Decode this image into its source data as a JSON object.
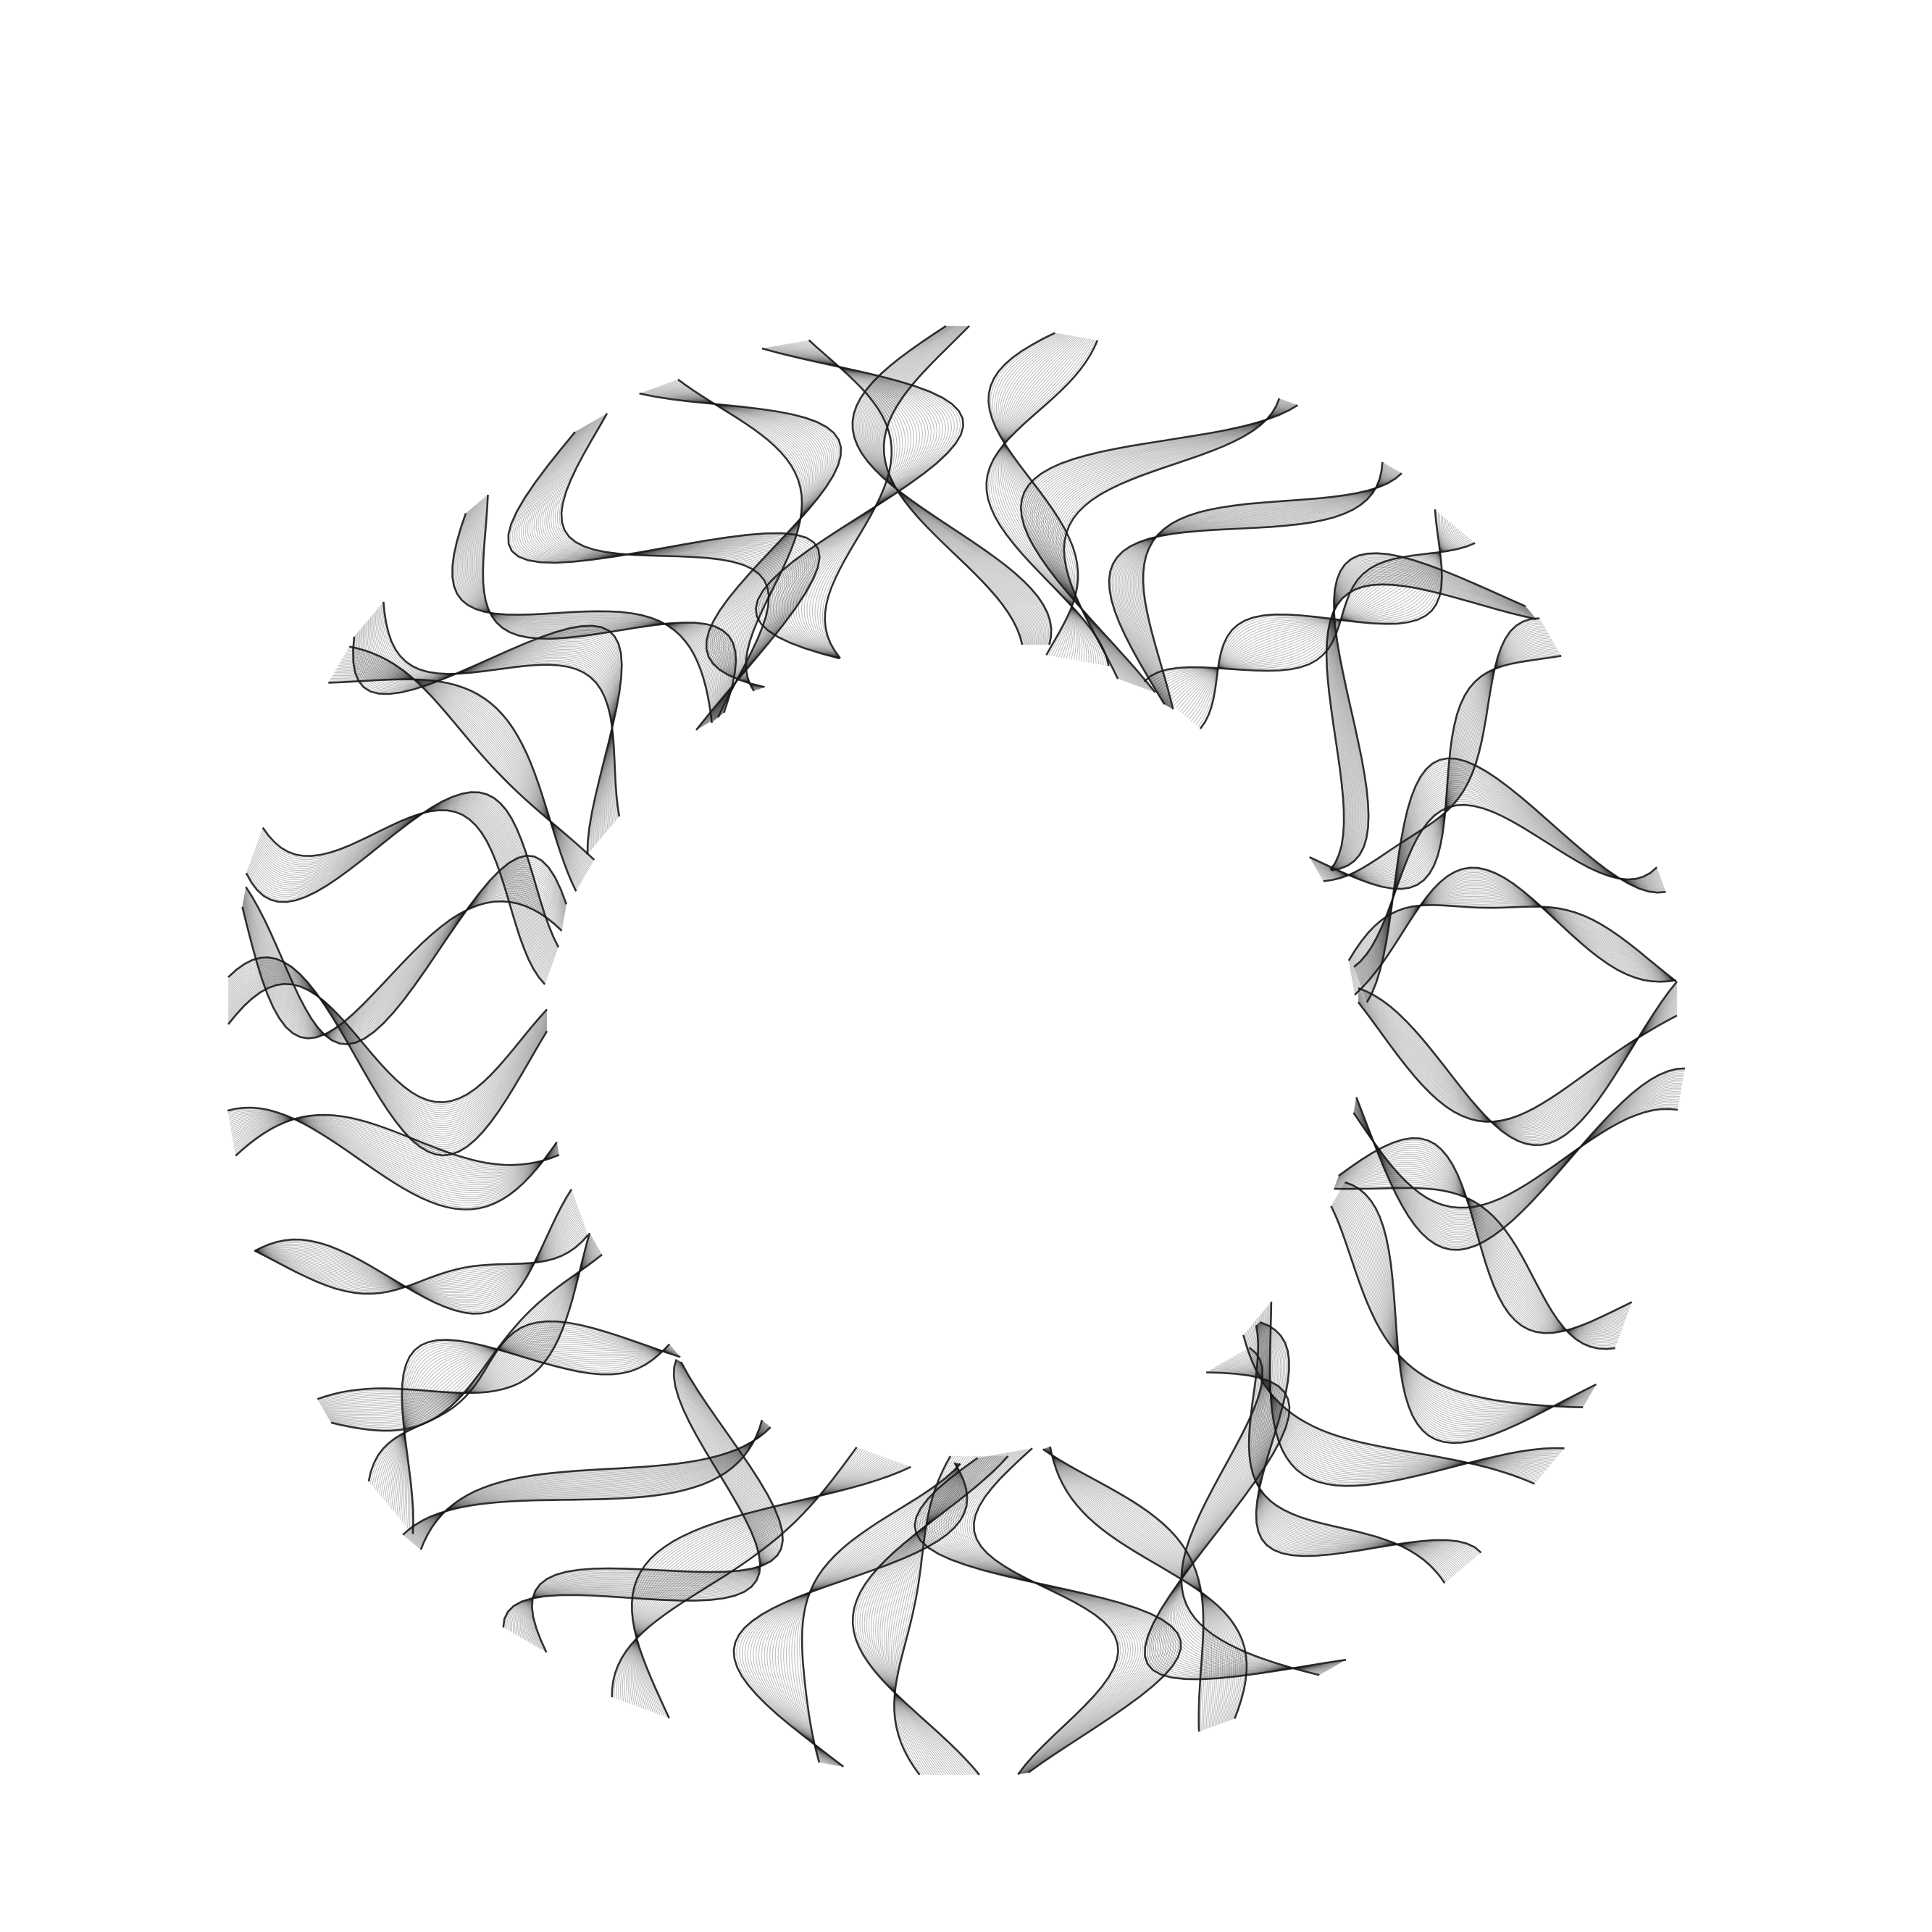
{
  "artwork": {
    "ribbon_count": 36,
    "colors": {
      "background": "#ffffff",
      "ribbon": "#1a1a1a"
    }
  }
}
